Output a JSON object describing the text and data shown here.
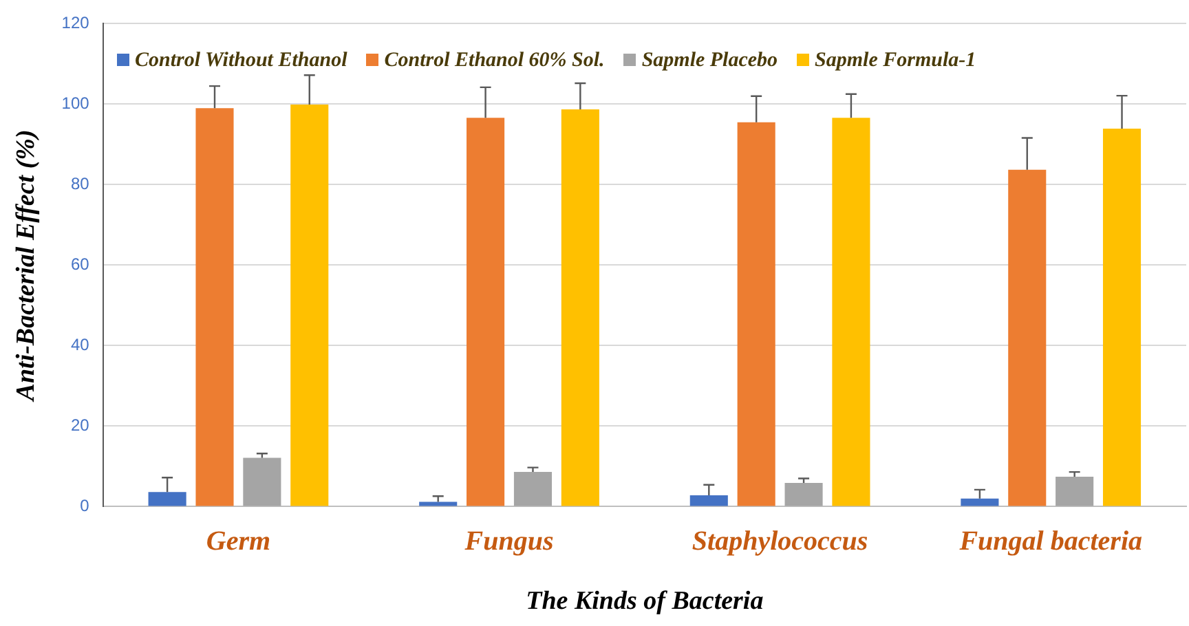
{
  "chart_data": {
    "type": "bar",
    "xlabel": "The Kinds of Bacteria",
    "ylabel": "Anti-Bacterial Effect (%)",
    "categories": [
      "Germ",
      "Fungus",
      "Staphylococcus",
      "Fungal bacteria"
    ],
    "series": [
      {
        "name": "Control Without Ethanol",
        "color": "#4472c4",
        "values": [
          3.6,
          1.2,
          2.8,
          2.0
        ],
        "errors": [
          [
            3.6,
            7.2
          ],
          [
            1.2,
            2.6
          ],
          [
            2.8,
            5.4
          ],
          [
            2.0,
            4.2
          ]
        ]
      },
      {
        "name": "Control Ethanol 60% Sol.",
        "color": "#ed7d31",
        "values": [
          99.0,
          96.6,
          95.5,
          83.7
        ],
        "errors": [
          [
            99.0,
            104.5
          ],
          [
            96.6,
            104.2
          ],
          [
            95.5,
            102.0
          ],
          [
            83.7,
            91.6
          ]
        ]
      },
      {
        "name": "Sapmle Placebo",
        "color": "#a5a5a5",
        "values": [
          12.1,
          8.6,
          5.9,
          7.4
        ],
        "errors": [
          [
            12.1,
            13.2
          ],
          [
            8.6,
            9.7
          ],
          [
            5.9,
            7.0
          ],
          [
            7.4,
            8.6
          ]
        ]
      },
      {
        "name": "Sapmle Formula-1",
        "color": "#ffc000",
        "values": [
          99.9,
          98.7,
          96.6,
          93.9
        ],
        "errors": [
          [
            99.9,
            107.2
          ],
          [
            98.7,
            105.2
          ],
          [
            96.6,
            102.5
          ],
          [
            93.9,
            102.1
          ]
        ]
      }
    ],
    "ylim": [
      0,
      120
    ],
    "yticks": [
      0,
      20,
      40,
      60,
      80,
      100,
      120
    ],
    "grid": "y",
    "legend": "top"
  }
}
